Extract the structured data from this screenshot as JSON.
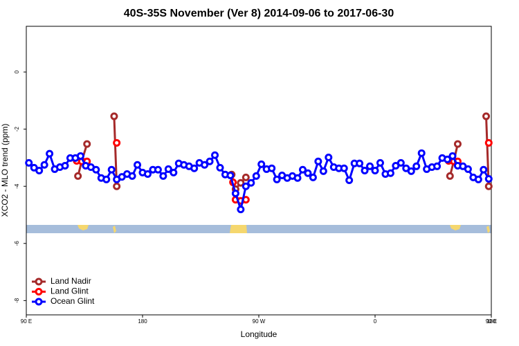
{
  "chart_data": {
    "type": "line",
    "title": "40S-35S November (Ver 8)   2014-09-06 to 2017-06-30",
    "x_label": "Longitude",
    "y_label": "XCO2 - MLO trend (ppm)",
    "xlim": [
      90,
      450
    ],
    "xticks": [
      {
        "value": 90,
        "label": "90 E"
      },
      180,
      {
        "value": 270,
        "label": "90 W"
      },
      {
        "value": 360,
        "label": "0"
      },
      {
        "value": 450,
        "label": "90 E"
      },
      {
        "value": 450,
        "label": "180"
      }
    ],
    "ylim": [
      -8.5,
      1.6
    ],
    "yticks": [
      0,
      -2,
      -4,
      -6,
      -8
    ],
    "grid": false,
    "legend": "bottomleft",
    "series": [
      {
        "name": "Land Nadir",
        "color": "#a52a2a",
        "x": [
          130,
          133,
          137,
          145,
          158,
          160,
          200,
          249,
          252,
          256,
          260,
          340,
          418,
          421,
          424,
          435,
          446,
          448
        ],
        "values": [
          -3.64,
          -3.11,
          -2.52,
          null,
          -1.55,
          -4.0,
          null,
          -3.59,
          -4.1,
          -3.88,
          -3.69,
          null,
          -3.64,
          -3.11,
          -2.52,
          null,
          -1.55,
          -4.0
        ]
      },
      {
        "name": "Land Glint",
        "color": "#ff0000",
        "x": [
          129,
          133,
          137,
          148,
          160,
          200,
          250,
          252,
          256,
          260,
          340,
          417,
          421,
          424,
          435,
          448
        ],
        "values": [
          -3.11,
          -3.13,
          -3.13,
          null,
          -2.48,
          null,
          -3.86,
          -4.47,
          -4.51,
          -4.47,
          null,
          -3.11,
          -3.13,
          -3.13,
          null,
          -2.48
        ]
      },
      {
        "name": "Ocean Glint",
        "color": "#0000ff",
        "x": [
          92,
          96,
          100,
          104,
          108,
          112,
          116,
          120,
          124,
          128,
          132,
          136,
          140,
          144,
          148,
          152,
          156,
          160,
          164,
          168,
          172,
          176,
          180,
          184,
          188,
          192,
          196,
          200,
          204,
          208,
          212,
          216,
          220,
          224,
          228,
          232,
          236,
          240,
          244,
          248,
          252,
          256,
          260,
          264,
          268,
          272,
          276,
          280,
          284,
          288,
          292,
          296,
          300,
          304,
          308,
          312,
          316,
          320,
          324,
          328,
          332,
          336,
          340,
          344,
          348,
          352,
          356,
          360,
          364,
          368,
          372,
          376,
          380,
          384,
          388,
          392,
          396,
          400,
          404,
          408,
          412,
          416,
          420,
          424,
          428,
          432,
          436,
          440,
          444,
          448
        ],
        "values": [
          -3.18,
          -3.35,
          -3.45,
          -3.25,
          -2.86,
          -3.4,
          -3.33,
          -3.28,
          -3.01,
          -3.01,
          -2.94,
          -3.28,
          -3.33,
          -3.42,
          -3.71,
          -3.76,
          -3.42,
          -3.76,
          -3.67,
          -3.57,
          -3.64,
          -3.25,
          -3.52,
          -3.57,
          -3.42,
          -3.42,
          -3.64,
          -3.4,
          -3.52,
          -3.2,
          -3.25,
          -3.3,
          -3.37,
          -3.18,
          -3.25,
          -3.13,
          -2.91,
          -3.35,
          -3.59,
          -3.62,
          -4.25,
          -4.81,
          -4.0,
          -3.88,
          -3.64,
          -3.23,
          -3.4,
          -3.37,
          -3.76,
          -3.62,
          -3.71,
          -3.64,
          -3.71,
          -3.42,
          -3.54,
          -3.69,
          -3.13,
          -3.47,
          -2.99,
          -3.33,
          -3.37,
          -3.37,
          -3.79,
          -3.2,
          -3.2,
          -3.45,
          -3.3,
          -3.45,
          -3.18,
          -3.57,
          -3.54,
          -3.28,
          -3.18,
          -3.37,
          -3.47,
          -3.3,
          -2.84,
          -3.4,
          -3.33,
          -3.3,
          -3.01,
          -3.06,
          -2.94,
          -3.28,
          -3.3,
          -3.4,
          -3.69,
          -3.76,
          -3.42,
          -3.74
        ]
      }
    ]
  }
}
